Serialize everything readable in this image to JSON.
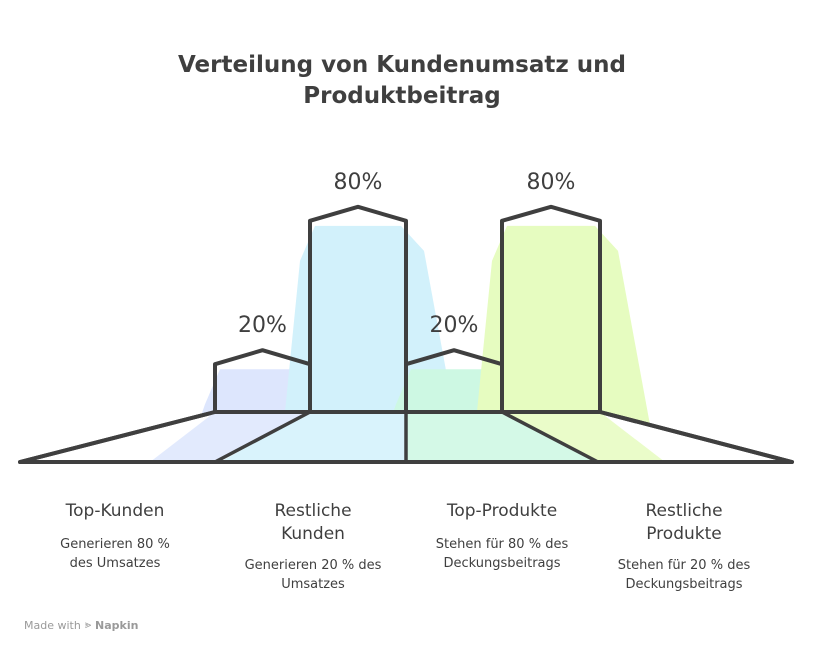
{
  "title": "Verteilung von Kundenumsatz und Produktbeitrag",
  "chart_data": {
    "type": "bar",
    "title": "Verteilung von Kundenumsatz und Produktbeitrag",
    "categories": [
      "Top-Kunden",
      "Restliche Kunden",
      "Top-Produkte",
      "Restliche Produkte"
    ],
    "values": [
      20,
      80,
      20,
      80
    ],
    "value_labels": [
      "20%",
      "80%",
      "20%",
      "80%"
    ],
    "descriptions": [
      "Generieren 80 % des Umsatzes",
      "Generieren 20 % des Umsatzes",
      "Stehen für 80 % des Deckungsbeitrags",
      "Stehen für 20 % des Deckungsbeitrags"
    ],
    "colors": [
      "#dde6fd",
      "#d2f1fb",
      "#cdf8e3",
      "#e6fcc0"
    ],
    "ylim": [
      0,
      100
    ],
    "xlabel": "",
    "ylabel": ""
  },
  "columns": [
    {
      "title": "Top-Kunden",
      "desc": "Generieren 80 % des Umsatzes"
    },
    {
      "title": "Restliche Kunden",
      "desc": "Generieren 20 % des Umsatzes"
    },
    {
      "title": "Top-Produkte",
      "desc": "Stehen für 80 % des Deckungsbeitrags"
    },
    {
      "title": "Restliche Produkte",
      "desc": "Stehen für 20 % des Deckungsbeitrags"
    }
  ],
  "footer": {
    "made_with": "Made with",
    "brand": "Napkin"
  },
  "stroke_color": "#3f3f3f"
}
